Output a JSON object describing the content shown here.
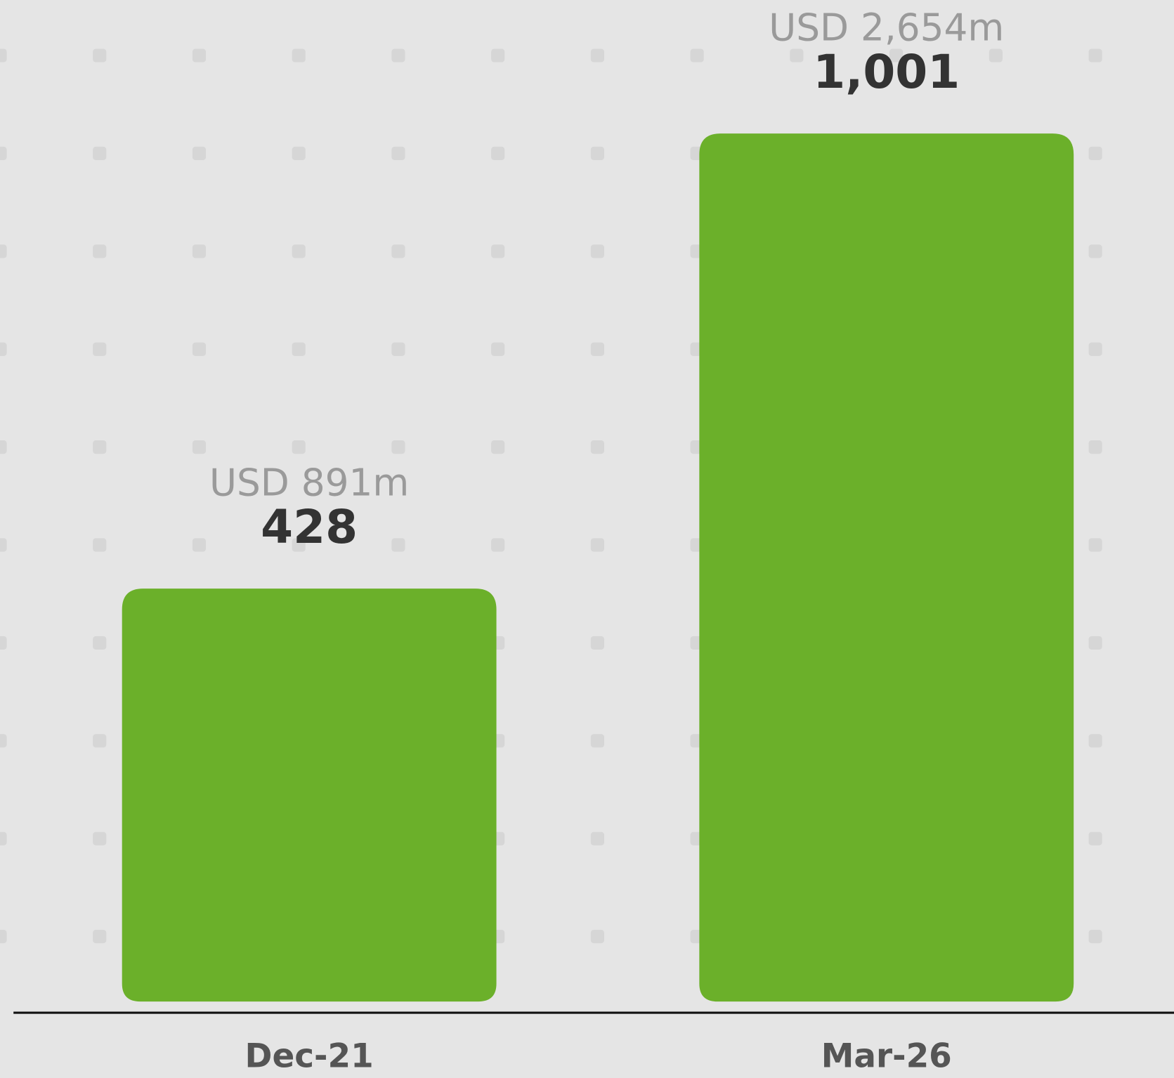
{
  "chart_data": {
    "type": "bar",
    "categories": [
      "Dec-21",
      "Mar-26"
    ],
    "values": [
      428,
      1001
    ],
    "value_labels": [
      "428",
      "1,001"
    ],
    "annotations": [
      "USD 891m",
      "USD 2,654m"
    ],
    "color": "#6bb02a",
    "ylim": [
      -92,
      1169
    ]
  }
}
